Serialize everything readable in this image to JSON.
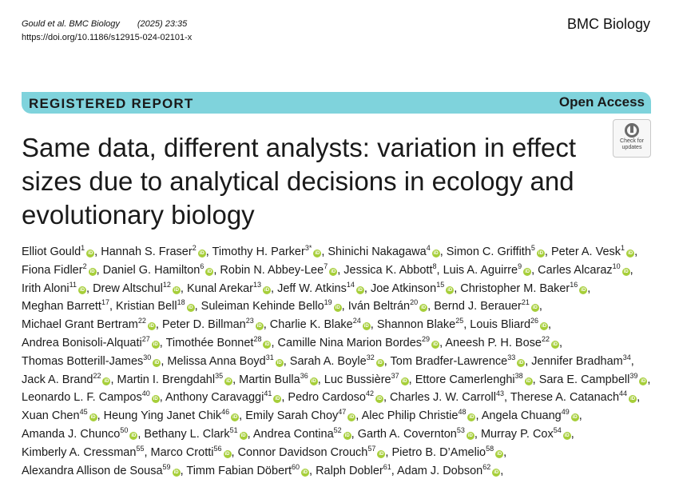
{
  "header": {
    "citation_authors": "Gould et al. BMC Biology",
    "citation_year": "(2025) 23:35",
    "doi": "https://doi.org/10.1186/s12915-024-02101-x",
    "journal": "BMC Biology"
  },
  "banner": {
    "article_type": "REGISTERED REPORT",
    "access": "Open Access",
    "color": "#7fd3dc"
  },
  "check_for_updates": {
    "line1": "Check for",
    "line2": "updates"
  },
  "title": "Same data, different analysts: variation in effect sizes due to analytical decisions in ecology and evolutionary biology",
  "authors": [
    {
      "name": "Elliot Gould",
      "sup": "1",
      "orcid": true
    },
    {
      "name": "Hannah S. Fraser",
      "sup": "2",
      "orcid": true
    },
    {
      "name": "Timothy H. Parker",
      "sup": "3*",
      "orcid": true
    },
    {
      "name": "Shinichi Nakagawa",
      "sup": "4",
      "orcid": true
    },
    {
      "name": "Simon C. Griffith",
      "sup": "5",
      "orcid": true
    },
    {
      "name": "Peter A. Vesk",
      "sup": "1",
      "orcid": true
    },
    {
      "name": "Fiona Fidler",
      "sup": "2",
      "orcid": true
    },
    {
      "name": "Daniel G. Hamilton",
      "sup": "6",
      "orcid": true
    },
    {
      "name": "Robin N. Abbey-Lee",
      "sup": "7",
      "orcid": true
    },
    {
      "name": "Jessica K. Abbott",
      "sup": "8",
      "orcid": false
    },
    {
      "name": "Luis A. Aguirre",
      "sup": "9",
      "orcid": true
    },
    {
      "name": "Carles Alcaraz",
      "sup": "10",
      "orcid": true
    },
    {
      "name": "Irith Aloni",
      "sup": "11",
      "orcid": true
    },
    {
      "name": "Drew Altschul",
      "sup": "12",
      "orcid": true
    },
    {
      "name": "Kunal Arekar",
      "sup": "13",
      "orcid": true
    },
    {
      "name": "Jeff W. Atkins",
      "sup": "14",
      "orcid": true
    },
    {
      "name": "Joe Atkinson",
      "sup": "15",
      "orcid": true
    },
    {
      "name": "Christopher M. Baker",
      "sup": "16",
      "orcid": true
    },
    {
      "name": "Meghan Barrett",
      "sup": "17",
      "orcid": false
    },
    {
      "name": "Kristian Bell",
      "sup": "18",
      "orcid": true
    },
    {
      "name": "Suleiman Kehinde Bello",
      "sup": "19",
      "orcid": true
    },
    {
      "name": "Iván Beltrán",
      "sup": "20",
      "orcid": true
    },
    {
      "name": "Bernd J. Berauer",
      "sup": "21",
      "orcid": true
    },
    {
      "name": "Michael Grant Bertram",
      "sup": "22",
      "orcid": true
    },
    {
      "name": "Peter D. Billman",
      "sup": "23",
      "orcid": true
    },
    {
      "name": "Charlie K. Blake",
      "sup": "24",
      "orcid": true
    },
    {
      "name": "Shannon Blake",
      "sup": "25",
      "orcid": false
    },
    {
      "name": "Louis Bliard",
      "sup": "26",
      "orcid": true
    },
    {
      "name": "Andrea Bonisoli-Alquati",
      "sup": "27",
      "orcid": true
    },
    {
      "name": "Timothée Bonnet",
      "sup": "28",
      "orcid": true
    },
    {
      "name": "Camille Nina Marion Bordes",
      "sup": "29",
      "orcid": true
    },
    {
      "name": "Aneesh P. H. Bose",
      "sup": "22",
      "orcid": true
    },
    {
      "name": "Thomas Botterill-James",
      "sup": "30",
      "orcid": true
    },
    {
      "name": "Melissa Anna Boyd",
      "sup": "31",
      "orcid": true
    },
    {
      "name": "Sarah A. Boyle",
      "sup": "32",
      "orcid": true
    },
    {
      "name": "Tom Bradfer-Lawrence",
      "sup": "33",
      "orcid": true
    },
    {
      "name": "Jennifer Bradham",
      "sup": "34",
      "orcid": false
    },
    {
      "name": "Jack A. Brand",
      "sup": "22",
      "orcid": true
    },
    {
      "name": "Martin I. Brengdahl",
      "sup": "35",
      "orcid": true
    },
    {
      "name": "Martin Bulla",
      "sup": "36",
      "orcid": true
    },
    {
      "name": "Luc Bussière",
      "sup": "37",
      "orcid": true
    },
    {
      "name": "Ettore Camerlenghi",
      "sup": "38",
      "orcid": true
    },
    {
      "name": "Sara E. Campbell",
      "sup": "39",
      "orcid": true
    },
    {
      "name": "Leonardo L. F. Campos",
      "sup": "40",
      "orcid": true
    },
    {
      "name": "Anthony Caravaggi",
      "sup": "41",
      "orcid": true
    },
    {
      "name": "Pedro Cardoso",
      "sup": "42",
      "orcid": true
    },
    {
      "name": "Charles J. W. Carroll",
      "sup": "43",
      "orcid": false
    },
    {
      "name": "Therese A. Catanach",
      "sup": "44",
      "orcid": true
    },
    {
      "name": "Xuan Chen",
      "sup": "45",
      "orcid": true
    },
    {
      "name": "Heung Ying Janet Chik",
      "sup": "46",
      "orcid": true
    },
    {
      "name": "Emily Sarah Choy",
      "sup": "47",
      "orcid": true
    },
    {
      "name": "Alec Philip Christie",
      "sup": "48",
      "orcid": true
    },
    {
      "name": "Angela Chuang",
      "sup": "49",
      "orcid": true
    },
    {
      "name": "Amanda J. Chunco",
      "sup": "50",
      "orcid": true
    },
    {
      "name": "Bethany L. Clark",
      "sup": "51",
      "orcid": true
    },
    {
      "name": "Andrea Contina",
      "sup": "52",
      "orcid": true
    },
    {
      "name": "Garth A. Covernton",
      "sup": "53",
      "orcid": true
    },
    {
      "name": "Murray P. Cox",
      "sup": "54",
      "orcid": true
    },
    {
      "name": "Kimberly A. Cressman",
      "sup": "55",
      "orcid": false
    },
    {
      "name": "Marco Crotti",
      "sup": "56",
      "orcid": true
    },
    {
      "name": "Connor Davidson Crouch",
      "sup": "57",
      "orcid": true
    },
    {
      "name": "Pietro B. D’Amelio",
      "sup": "58",
      "orcid": true
    },
    {
      "name": "Alexandra Allison de Sousa",
      "sup": "59",
      "orcid": true
    },
    {
      "name": "Timm Fabian Döbert",
      "sup": "60",
      "orcid": true
    },
    {
      "name": "Ralph Dobler",
      "sup": "61",
      "orcid": false
    },
    {
      "name": "Adam J. Dobson",
      "sup": "62",
      "orcid": true
    }
  ],
  "orcid_mark": "iD",
  "colors": {
    "orcid": "#a6ce39",
    "text": "#1a1a1a"
  }
}
